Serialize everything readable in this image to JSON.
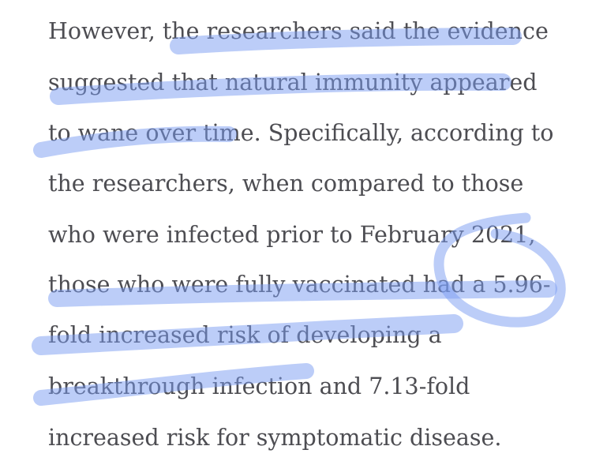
{
  "article": {
    "lines": [
      "However, the researchers said the evidence",
      "suggested that natural immunity appeared",
      "to wane over time. Specifically, according to",
      "the researchers, when compared to those",
      "who were infected prior to February 2021,",
      "those who were fully vaccinated had a 5.96-",
      "fold increased risk of developing a",
      "breakthrough infection and 7.13-fold",
      "increased risk for symptomatic disease."
    ]
  },
  "colors": {
    "text": "#4d4d52",
    "highlighter": "#7a9cf2",
    "background": "#ffffff"
  }
}
